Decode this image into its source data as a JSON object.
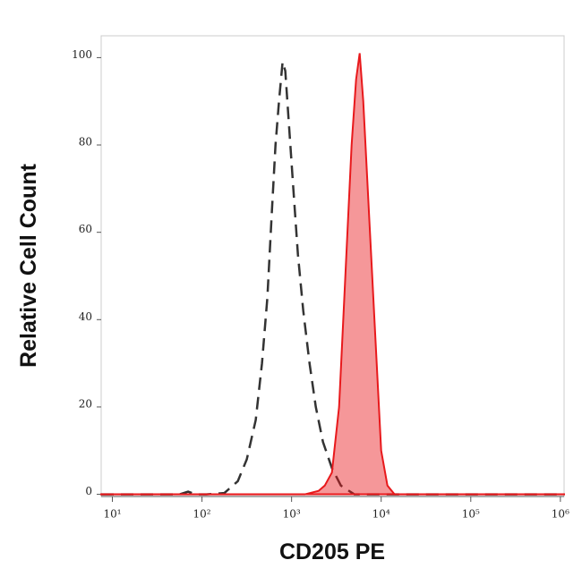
{
  "chart_data": {
    "type": "histogram-overlay",
    "x_label": "CD205 PE",
    "y_label": "Relative Cell Count",
    "x_scale": "log",
    "xlim": [
      7.5,
      1100000
    ],
    "ylim": [
      -0.5,
      105
    ],
    "xticks": [
      {
        "value": 10,
        "label": "10¹"
      },
      {
        "value": 100,
        "label": "10²"
      },
      {
        "value": 1000,
        "label": "10³"
      },
      {
        "value": 10000,
        "label": "10⁴"
      },
      {
        "value": 100000,
        "label": "10⁵"
      },
      {
        "value": 1000000,
        "label": "10⁶"
      }
    ],
    "yticks": [
      0,
      20,
      40,
      60,
      80,
      100
    ],
    "series": [
      {
        "style": "dashed",
        "color": "#333333",
        "x": [
          7.5,
          56,
          70,
          85,
          112,
          178,
          251,
          316,
          398,
          468,
          537,
          603,
          661,
          724,
          794,
          851,
          933,
          1047,
          1175,
          1349,
          1585,
          1862,
          2239,
          2818,
          3548,
          5012,
          1100000
        ],
        "values": [
          0,
          0,
          0.6,
          0,
          0,
          0.3,
          3,
          8,
          17,
          30,
          45,
          65,
          80,
          90,
          99,
          97,
          85,
          70,
          55,
          42,
          30,
          20,
          12,
          6,
          2,
          0,
          0
        ]
      },
      {
        "style": "filled",
        "color": "#e8191c",
        "x": [
          7.5,
          1412,
          2000,
          2344,
          2818,
          3388,
          3981,
          4677,
          5248,
          5754,
          6310,
          7079,
          7943,
          8913,
          10000,
          11749,
          14125,
          1100000
        ],
        "values": [
          0,
          0,
          0.8,
          2,
          5,
          20,
          50,
          80,
          95,
          101,
          90,
          70,
          50,
          30,
          10,
          2,
          0,
          0
        ]
      }
    ]
  }
}
